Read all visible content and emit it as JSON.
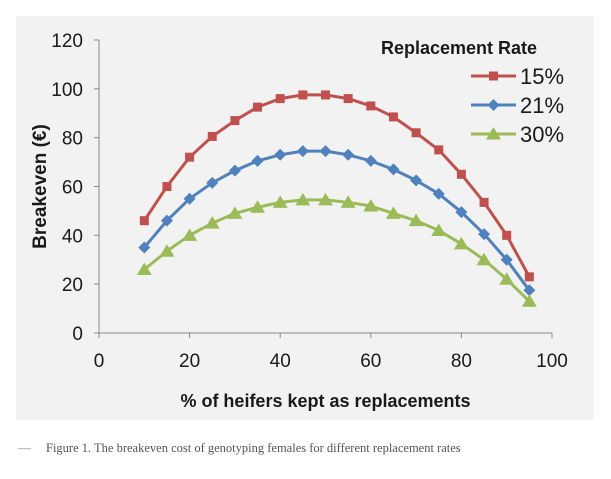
{
  "chart_data": {
    "type": "line",
    "legend_title": "Replacement Rate",
    "legend_position": "top-right",
    "xlabel": "% of heifers kept as replacements",
    "ylabel": "Breakeven (€)",
    "xlim": [
      0,
      100
    ],
    "ylim": [
      0,
      120
    ],
    "xticks": [
      "0",
      "20",
      "40",
      "60",
      "80",
      "100"
    ],
    "yticks": [
      "0",
      "20",
      "40",
      "60",
      "80",
      "100",
      "120"
    ],
    "x": [
      10,
      15,
      20,
      25,
      30,
      35,
      40,
      45,
      50,
      55,
      60,
      65,
      70,
      75,
      80,
      85,
      90,
      95
    ],
    "grid": false,
    "series": [
      {
        "name": "15%",
        "color": "#c0504d",
        "marker": "square",
        "values": [
          46,
          60,
          72,
          80.5,
          87,
          92.5,
          96,
          97.5,
          97.5,
          96,
          93,
          88.5,
          82,
          75,
          65,
          53.5,
          40,
          23
        ]
      },
      {
        "name": "21%",
        "color": "#4f81bd",
        "marker": "diamond",
        "values": [
          35,
          46,
          55,
          61.5,
          66.5,
          70.5,
          73,
          74.5,
          74.5,
          73,
          70.5,
          67,
          62.5,
          57,
          49.5,
          40.5,
          30,
          17.5
        ]
      },
      {
        "name": "30%",
        "color": "#9bbb59",
        "marker": "triangle",
        "values": [
          26,
          33.5,
          40,
          45,
          49,
          51.5,
          53.5,
          54.5,
          54.5,
          53.5,
          52,
          49,
          46,
          42,
          36.5,
          30,
          22,
          13
        ]
      }
    ]
  },
  "caption": {
    "dash": "—",
    "text": "Figure 1. The breakeven cost of genotyping females for different replacement rates"
  }
}
